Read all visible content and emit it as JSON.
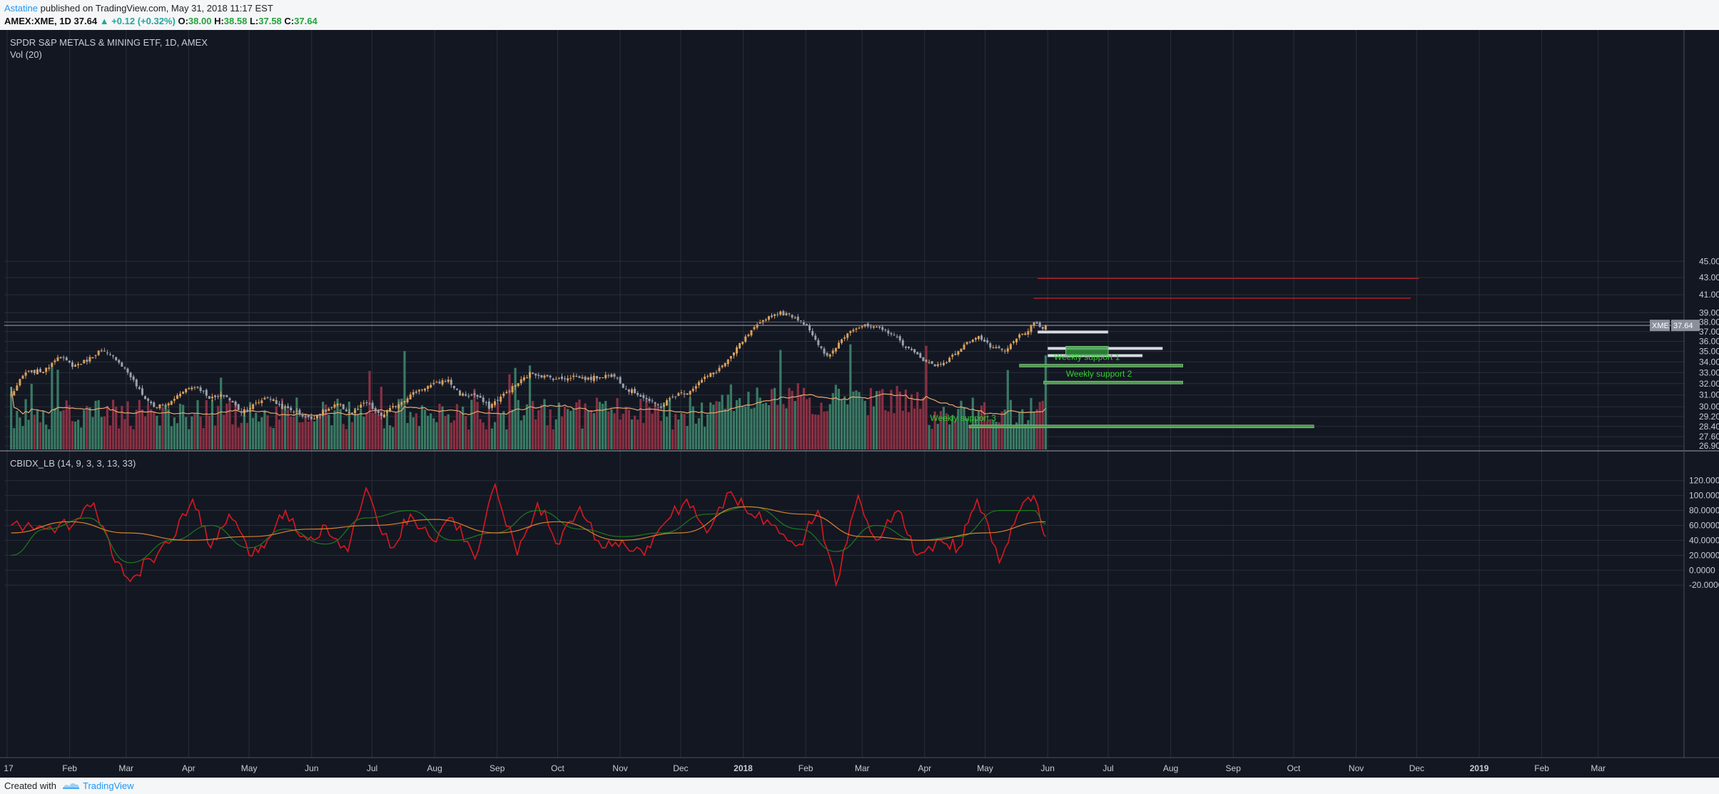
{
  "header": {
    "author": "Astatine",
    "published_text": "published on TradingView.com, May 31, 2018 11:17 EST",
    "symbol_line": {
      "symbol": "AMEX:XME, 1D",
      "last": "37.64",
      "arrow": "▲",
      "change": "+0.12 (+0.32%)",
      "o_label": "O:",
      "o": "38.00",
      "h_label": "H:",
      "h": "38.58",
      "l_label": "L:",
      "l": "37.58",
      "c_label": "C:",
      "c": "37.64"
    }
  },
  "main_pane": {
    "title": "SPDR S&P METALS & MINING ETF, 1D, AMEX",
    "volume_label": "Vol (20)",
    "price_tag_symbol": "XME",
    "price_tag_value": "37.64",
    "annotations": [
      "Weekly support 1",
      "Weekly support 2",
      "Weekly support 3"
    ]
  },
  "indicator_pane": {
    "title": "CBIDX_LB (14, 9, 3, 3, 13, 33)"
  },
  "footer": {
    "created_with": "Created with",
    "brand": "TradingView"
  },
  "colors": {
    "background": "#131722",
    "grid": "#2a2e39",
    "candle_up": "#d9a05b",
    "candle_down": "#9aa0ac",
    "volume_up": "#3a7a64",
    "volume_down": "#8a3043",
    "resistance": "#b3262b",
    "support": "#6fbf6f",
    "support_text": "#32d12e",
    "indicator_fast": "#d9181f",
    "indicator_signal": "#1e7a1e",
    "indicator_slow": "#d9822b"
  },
  "chart_data": [
    {
      "type": "candlestick",
      "title": "SPDR S&P METALS & MINING ETF, 1D, AMEX",
      "x_tick_labels": [
        "17",
        "Feb",
        "Mar",
        "Apr",
        "May",
        "Jun",
        "Jul",
        "Aug",
        "Sep",
        "Oct",
        "Nov",
        "Dec",
        "2018",
        "Feb",
        "Mar",
        "Apr",
        "May",
        "Jun",
        "Jul",
        "Aug",
        "Sep",
        "Oct",
        "Nov",
        "Dec",
        "2019",
        "Feb",
        "Mar"
      ],
      "y_tick_labels": [
        "45.00",
        "43.00",
        "41.00",
        "39.00",
        "38.00",
        "37.00",
        "36.00",
        "35.00",
        "34.00",
        "33.00",
        "32.00",
        "31.00",
        "30.00",
        "29.20",
        "28.40",
        "27.60",
        "26.90"
      ],
      "y_scale": "log",
      "ylim": [
        26.9,
        45.0
      ],
      "series": [
        {
          "name": "XME",
          "close_path": [
            {
              "x": "2017-01-03",
              "y": 31.0
            },
            {
              "x": "2017-01-10",
              "y": 33.0
            },
            {
              "x": "2017-01-20",
              "y": 33.2
            },
            {
              "x": "2017-01-26",
              "y": 34.6
            },
            {
              "x": "2017-02-03",
              "y": 33.6
            },
            {
              "x": "2017-02-10",
              "y": 34.2
            },
            {
              "x": "2017-02-16",
              "y": 35.1
            },
            {
              "x": "2017-02-24",
              "y": 34.3
            },
            {
              "x": "2017-03-02",
              "y": 33.0
            },
            {
              "x": "2017-03-09",
              "y": 31.0
            },
            {
              "x": "2017-03-15",
              "y": 30.0
            },
            {
              "x": "2017-03-22",
              "y": 30.2
            },
            {
              "x": "2017-03-29",
              "y": 31.4
            },
            {
              "x": "2017-04-05",
              "y": 31.8
            },
            {
              "x": "2017-04-12",
              "y": 30.7
            },
            {
              "x": "2017-04-19",
              "y": 31.0
            },
            {
              "x": "2017-04-27",
              "y": 29.6
            },
            {
              "x": "2017-05-04",
              "y": 30.2
            },
            {
              "x": "2017-05-10",
              "y": 30.9
            },
            {
              "x": "2017-05-17",
              "y": 30.0
            },
            {
              "x": "2017-05-24",
              "y": 29.6
            },
            {
              "x": "2017-05-31",
              "y": 29.0
            },
            {
              "x": "2017-06-07",
              "y": 29.6
            },
            {
              "x": "2017-06-14",
              "y": 30.2
            },
            {
              "x": "2017-06-21",
              "y": 29.4
            },
            {
              "x": "2017-06-28",
              "y": 30.4
            },
            {
              "x": "2017-07-05",
              "y": 29.2
            },
            {
              "x": "2017-07-12",
              "y": 30.0
            },
            {
              "x": "2017-07-19",
              "y": 30.9
            },
            {
              "x": "2017-07-26",
              "y": 31.6
            },
            {
              "x": "2017-08-02",
              "y": 32.0
            },
            {
              "x": "2017-08-07",
              "y": 32.4
            },
            {
              "x": "2017-08-14",
              "y": 31.0
            },
            {
              "x": "2017-08-21",
              "y": 31.0
            },
            {
              "x": "2017-08-28",
              "y": 30.0
            },
            {
              "x": "2017-09-04",
              "y": 31.0
            },
            {
              "x": "2017-09-11",
              "y": 32.0
            },
            {
              "x": "2017-09-18",
              "y": 33.0
            },
            {
              "x": "2017-09-25",
              "y": 32.6
            },
            {
              "x": "2017-10-02",
              "y": 32.4
            },
            {
              "x": "2017-10-09",
              "y": 32.7
            },
            {
              "x": "2017-10-16",
              "y": 32.4
            },
            {
              "x": "2017-10-23",
              "y": 32.7
            },
            {
              "x": "2017-10-30",
              "y": 32.8
            },
            {
              "x": "2017-11-03",
              "y": 31.6
            },
            {
              "x": "2017-11-10",
              "y": 31.1
            },
            {
              "x": "2017-11-17",
              "y": 30.3
            },
            {
              "x": "2017-11-21",
              "y": 30.0
            },
            {
              "x": "2017-11-28",
              "y": 31.0
            },
            {
              "x": "2017-12-05",
              "y": 31.3
            },
            {
              "x": "2017-12-12",
              "y": 32.4
            },
            {
              "x": "2017-12-19",
              "y": 33.2
            },
            {
              "x": "2017-12-26",
              "y": 34.4
            },
            {
              "x": "2017-12-29",
              "y": 35.4
            },
            {
              "x": "2018-01-05",
              "y": 37.0
            },
            {
              "x": "2018-01-12",
              "y": 38.4
            },
            {
              "x": "2018-01-19",
              "y": 39.0
            },
            {
              "x": "2018-01-26",
              "y": 38.6
            },
            {
              "x": "2018-02-02",
              "y": 37.6
            },
            {
              "x": "2018-02-07",
              "y": 35.6
            },
            {
              "x": "2018-02-12",
              "y": 34.4
            },
            {
              "x": "2018-02-16",
              "y": 35.5
            },
            {
              "x": "2018-02-23",
              "y": 37.2
            },
            {
              "x": "2018-03-02",
              "y": 37.6
            },
            {
              "x": "2018-03-09",
              "y": 37.3
            },
            {
              "x": "2018-03-16",
              "y": 36.8
            },
            {
              "x": "2018-03-23",
              "y": 35.4
            },
            {
              "x": "2018-03-30",
              "y": 34.4
            },
            {
              "x": "2018-04-06",
              "y": 33.6
            },
            {
              "x": "2018-04-13",
              "y": 34.2
            },
            {
              "x": "2018-04-20",
              "y": 35.5
            },
            {
              "x": "2018-04-27",
              "y": 36.6
            },
            {
              "x": "2018-05-04",
              "y": 35.4
            },
            {
              "x": "2018-05-11",
              "y": 35.0
            },
            {
              "x": "2018-05-18",
              "y": 36.6
            },
            {
              "x": "2018-05-23",
              "y": 37.2
            },
            {
              "x": "2018-05-25",
              "y": 37.9
            },
            {
              "x": "2018-05-29",
              "y": 37.3
            },
            {
              "x": "2018-05-31",
              "y": 37.64
            }
          ]
        }
      ],
      "volume_series": {
        "name": "Vol (20)"
      },
      "annotations": [
        {
          "type": "resistance_line",
          "y": 42.9,
          "x_start": "2018-05-27",
          "x_end": "2018-12-02"
        },
        {
          "type": "resistance_line",
          "y": 40.6,
          "x_start": "2018-05-25",
          "x_end": "2018-11-28"
        },
        {
          "type": "white_line",
          "y": 36.95,
          "x_start": "2018-05-27",
          "x_end": "2018-07-01"
        },
        {
          "type": "white_line",
          "y": 35.3,
          "x_start": "2018-06-01",
          "x_end": "2018-07-28"
        },
        {
          "type": "white_line",
          "y": 34.6,
          "x_start": "2018-06-01",
          "x_end": "2018-07-18"
        },
        {
          "type": "green_box",
          "y_top": 35.5,
          "y_bottom": 34.6,
          "x_start": "2018-06-10",
          "x_end": "2018-07-01"
        },
        {
          "type": "support_line",
          "label": "Weekly support 1",
          "y": 33.65,
          "x_start": "2018-05-18",
          "x_end": "2018-08-07"
        },
        {
          "type": "support_line",
          "label": "Weekly support 2",
          "y": 32.1,
          "x_start": "2018-05-30",
          "x_end": "2018-08-07"
        },
        {
          "type": "support_line",
          "label": "Weekly support 3",
          "y": 28.4,
          "x_start": "2018-04-23",
          "x_end": "2018-10-11"
        }
      ]
    },
    {
      "type": "line",
      "title": "CBIDX_LB (14, 9, 3, 3, 13, 33)",
      "y_tick_labels": [
        "120.0000",
        "100.0000",
        "80.0000",
        "60.0000",
        "40.0000",
        "20.0000",
        "0.0000",
        "-20.0000"
      ],
      "ylim": [
        -25,
        125
      ],
      "series": [
        {
          "name": "fast",
          "x": [
            "2017-01-03",
            "2017-01-20",
            "2017-02-03",
            "2017-02-13",
            "2017-02-22",
            "2017-03-03",
            "2017-03-13",
            "2017-03-24",
            "2017-04-03",
            "2017-04-12",
            "2017-04-21",
            "2017-05-01",
            "2017-05-10",
            "2017-05-19",
            "2017-05-30",
            "2017-06-08",
            "2017-06-19",
            "2017-06-28",
            "2017-07-10",
            "2017-07-20",
            "2017-07-31",
            "2017-08-10",
            "2017-08-21",
            "2017-08-31",
            "2017-09-11",
            "2017-09-21",
            "2017-10-02",
            "2017-10-12",
            "2017-10-23",
            "2017-11-02",
            "2017-11-13",
            "2017-11-22",
            "2017-12-04",
            "2017-12-14",
            "2017-12-26",
            "2018-01-05",
            "2018-01-17",
            "2018-01-29",
            "2018-02-07",
            "2018-02-16",
            "2018-02-27",
            "2018-03-08",
            "2018-03-19",
            "2018-03-28",
            "2018-04-09",
            "2018-04-18",
            "2018-04-27",
            "2018-05-08",
            "2018-05-17",
            "2018-05-25",
            "2018-05-31"
          ],
          "y": [
            60,
            55,
            62,
            90,
            20,
            -15,
            15,
            40,
            95,
            30,
            75,
            20,
            40,
            80,
            40,
            60,
            25,
            110,
            30,
            75,
            40,
            70,
            15,
            115,
            20,
            90,
            35,
            85,
            30,
            40,
            20,
            60,
            95,
            50,
            105,
            75,
            60,
            35,
            80,
            -20,
            100,
            40,
            80,
            20,
            40,
            30,
            95,
            10,
            75,
            100,
            45
          ]
        },
        {
          "name": "signal",
          "x": [
            "2017-01-03",
            "2017-01-20",
            "2017-02-10",
            "2017-03-03",
            "2017-03-24",
            "2017-04-12",
            "2017-05-01",
            "2017-05-19",
            "2017-06-08",
            "2017-06-28",
            "2017-07-20",
            "2017-08-10",
            "2017-08-31",
            "2017-09-21",
            "2017-10-12",
            "2017-11-02",
            "2017-11-22",
            "2017-12-14",
            "2018-01-05",
            "2018-01-29",
            "2018-02-16",
            "2018-03-08",
            "2018-03-28",
            "2018-04-18",
            "2018-05-08",
            "2018-05-25",
            "2018-05-31"
          ],
          "y": [
            20,
            55,
            70,
            10,
            40,
            60,
            30,
            55,
            35,
            70,
            80,
            40,
            50,
            80,
            55,
            45,
            50,
            75,
            85,
            55,
            25,
            60,
            40,
            45,
            80,
            80,
            62
          ]
        },
        {
          "name": "slow",
          "x": [
            "2017-01-03",
            "2017-02-01",
            "2017-03-01",
            "2017-04-01",
            "2017-05-01",
            "2017-06-01",
            "2017-07-01",
            "2017-08-01",
            "2017-09-01",
            "2017-10-01",
            "2017-11-01",
            "2017-12-01",
            "2018-01-01",
            "2018-02-01",
            "2018-03-01",
            "2018-04-01",
            "2018-05-01",
            "2018-05-31"
          ],
          "y": [
            50,
            65,
            50,
            40,
            45,
            55,
            60,
            68,
            50,
            65,
            40,
            50,
            85,
            75,
            45,
            40,
            50,
            65
          ]
        }
      ]
    }
  ]
}
